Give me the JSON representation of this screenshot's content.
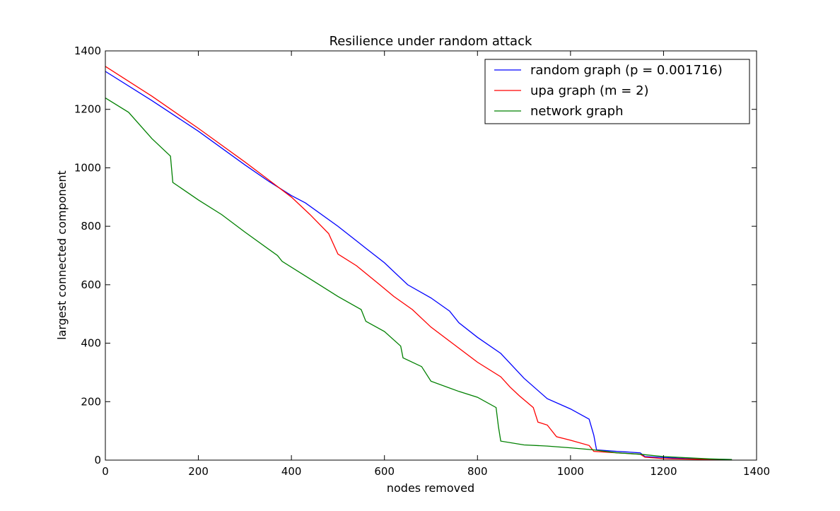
{
  "chart_data": {
    "type": "line",
    "title": "Resilience under random attack",
    "xlabel": "nodes removed",
    "ylabel": "largest connected component",
    "xlim": [
      0,
      1400
    ],
    "ylim": [
      0,
      1400
    ],
    "xticks": [
      0,
      200,
      400,
      600,
      800,
      1000,
      1200,
      1400
    ],
    "yticks": [
      0,
      200,
      400,
      600,
      800,
      1000,
      1200,
      1400
    ],
    "grid": false,
    "legend_position": "top-right",
    "series": [
      {
        "name": "random graph (p = 0.001716)",
        "color": "#0000ff",
        "points": [
          [
            0,
            1330
          ],
          [
            100,
            1230
          ],
          [
            200,
            1125
          ],
          [
            300,
            1010
          ],
          [
            350,
            955
          ],
          [
            400,
            905
          ],
          [
            430,
            880
          ],
          [
            500,
            800
          ],
          [
            560,
            725
          ],
          [
            600,
            675
          ],
          [
            650,
            600
          ],
          [
            700,
            555
          ],
          [
            740,
            510
          ],
          [
            760,
            470
          ],
          [
            800,
            420
          ],
          [
            850,
            365
          ],
          [
            900,
            280
          ],
          [
            950,
            210
          ],
          [
            1000,
            175
          ],
          [
            1040,
            140
          ],
          [
            1050,
            85
          ],
          [
            1056,
            35
          ],
          [
            1100,
            30
          ],
          [
            1150,
            25
          ],
          [
            1160,
            12
          ],
          [
            1250,
            5
          ],
          [
            1300,
            3
          ],
          [
            1347,
            2
          ]
        ]
      },
      {
        "name": "upa graph (m = 2)",
        "color": "#ff0000",
        "points": [
          [
            0,
            1347
          ],
          [
            100,
            1245
          ],
          [
            200,
            1135
          ],
          [
            300,
            1020
          ],
          [
            350,
            960
          ],
          [
            400,
            900
          ],
          [
            440,
            840
          ],
          [
            480,
            775
          ],
          [
            500,
            705
          ],
          [
            540,
            665
          ],
          [
            590,
            600
          ],
          [
            620,
            560
          ],
          [
            660,
            515
          ],
          [
            700,
            455
          ],
          [
            750,
            395
          ],
          [
            800,
            335
          ],
          [
            850,
            285
          ],
          [
            870,
            250
          ],
          [
            890,
            220
          ],
          [
            920,
            180
          ],
          [
            930,
            130
          ],
          [
            950,
            120
          ],
          [
            970,
            80
          ],
          [
            1000,
            68
          ],
          [
            1040,
            50
          ],
          [
            1050,
            30
          ],
          [
            1100,
            25
          ],
          [
            1150,
            20
          ],
          [
            1160,
            10
          ],
          [
            1200,
            5
          ],
          [
            1300,
            2
          ],
          [
            1347,
            1
          ]
        ]
      },
      {
        "name": "network graph",
        "color": "#008000",
        "points": [
          [
            0,
            1239
          ],
          [
            50,
            1190
          ],
          [
            100,
            1100
          ],
          [
            140,
            1040
          ],
          [
            145,
            950
          ],
          [
            200,
            890
          ],
          [
            250,
            840
          ],
          [
            300,
            780
          ],
          [
            370,
            700
          ],
          [
            380,
            680
          ],
          [
            450,
            610
          ],
          [
            500,
            560
          ],
          [
            550,
            515
          ],
          [
            560,
            475
          ],
          [
            600,
            440
          ],
          [
            635,
            390
          ],
          [
            640,
            350
          ],
          [
            680,
            320
          ],
          [
            700,
            270
          ],
          [
            760,
            235
          ],
          [
            800,
            215
          ],
          [
            840,
            180
          ],
          [
            845,
            115
          ],
          [
            850,
            65
          ],
          [
            900,
            52
          ],
          [
            950,
            48
          ],
          [
            1000,
            42
          ],
          [
            1050,
            35
          ],
          [
            1100,
            25
          ],
          [
            1150,
            20
          ],
          [
            1200,
            12
          ],
          [
            1250,
            8
          ],
          [
            1300,
            4
          ],
          [
            1347,
            2
          ]
        ]
      }
    ]
  }
}
